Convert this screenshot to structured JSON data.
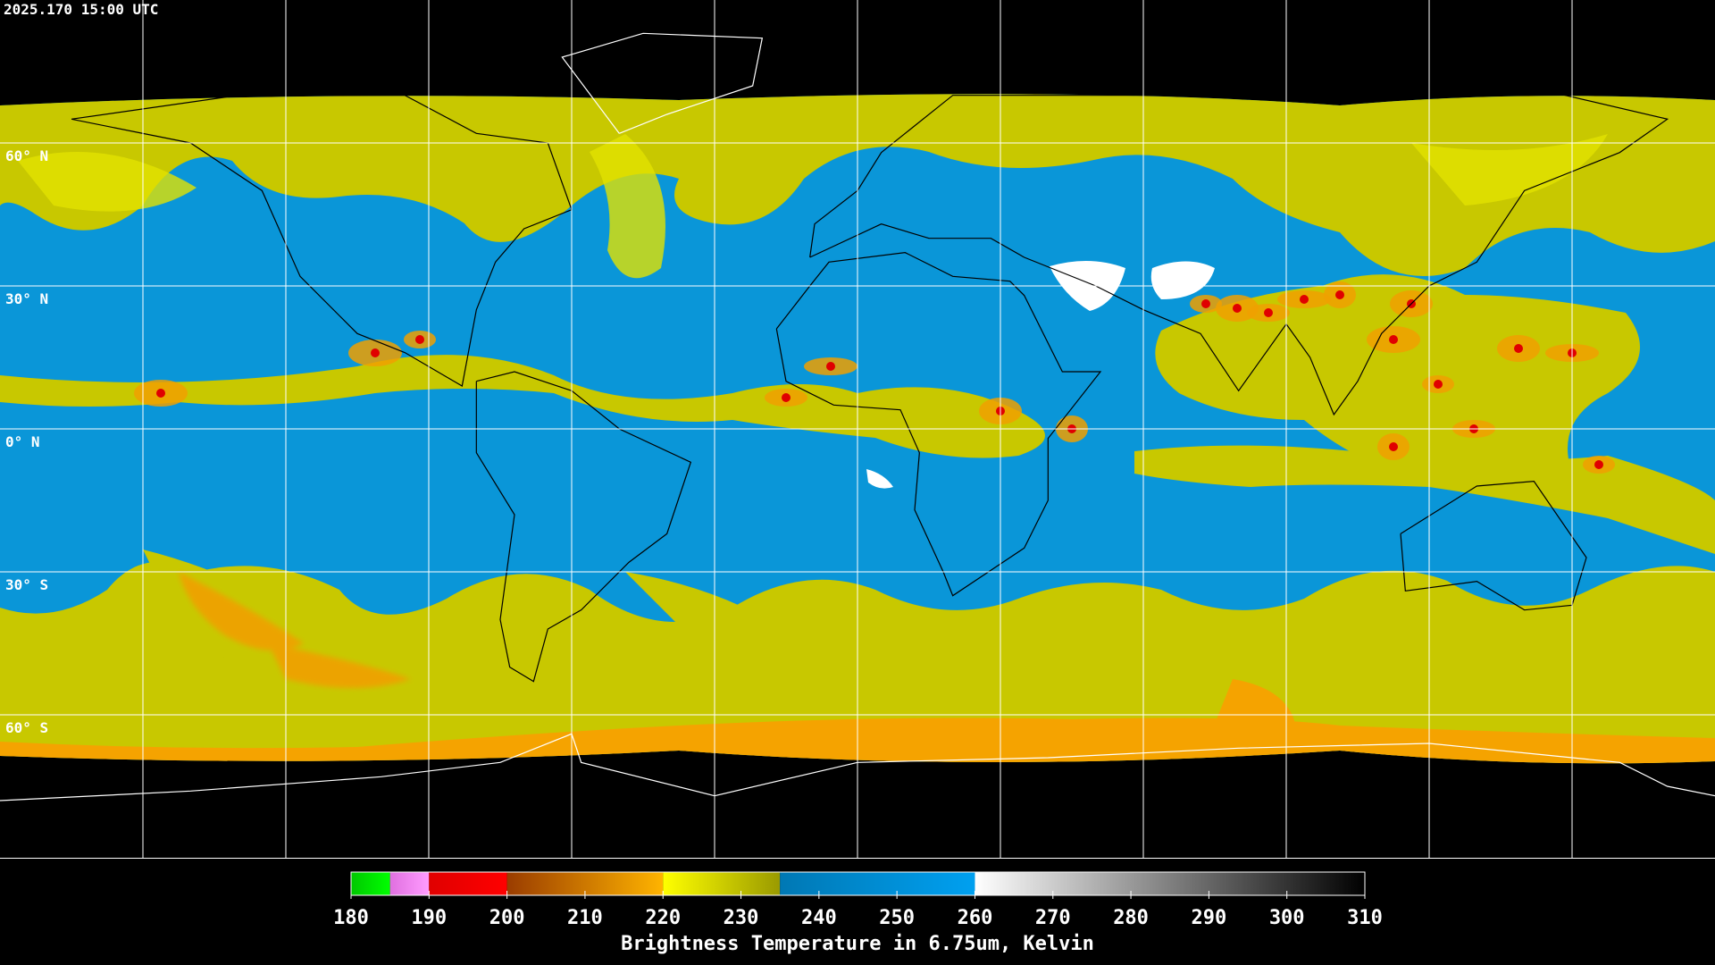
{
  "header": {
    "timestamp": "2025.170 15:00 UTC"
  },
  "map": {
    "latitude_labels": [
      "60° N",
      "30° N",
      "0° N",
      "30° S",
      "60° S"
    ]
  },
  "colorbar": {
    "title": "Brightness Temperature in 6.75um, Kelvin",
    "range": [
      180,
      310
    ],
    "ticks": [
      180,
      190,
      200,
      210,
      220,
      230,
      240,
      250,
      260,
      270,
      280,
      290,
      300,
      310
    ],
    "segments": [
      {
        "from": 180,
        "to": 185,
        "colors": [
          "#00c800",
          "#00ff00"
        ]
      },
      {
        "from": 185,
        "to": 190,
        "colors": [
          "#e070e0",
          "#ff9cff"
        ]
      },
      {
        "from": 190,
        "to": 200,
        "colors": [
          "#e00000",
          "#ff0000"
        ]
      },
      {
        "from": 200,
        "to": 220,
        "colors": [
          "#9a3c00",
          "#ffb400"
        ]
      },
      {
        "from": 220,
        "to": 235,
        "colors": [
          "#ffff00",
          "#9a9a00"
        ]
      },
      {
        "from": 235,
        "to": 260,
        "colors": [
          "#0078b4",
          "#00a0f0"
        ]
      },
      {
        "from": 260,
        "to": 310,
        "colors": [
          "#ffffff",
          "#000000"
        ]
      }
    ]
  }
}
